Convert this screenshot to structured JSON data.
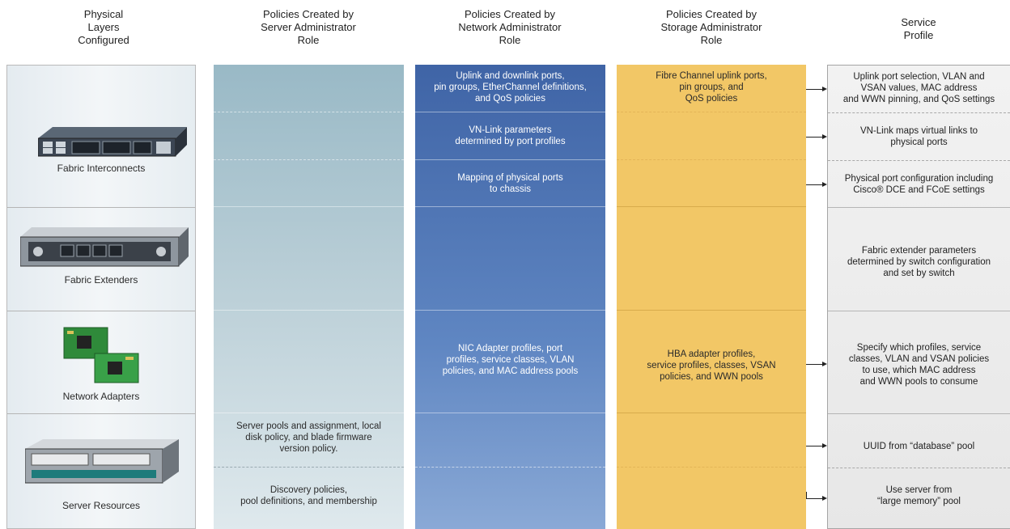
{
  "headers": {
    "physical": "Physical\nLayers\nConfigured",
    "server": "Policies Created by\nServer Administrator\nRole",
    "network": "Policies Created by\nNetwork Administrator\nRole",
    "storage": "Policies Created by\nStorage Administrator\nRole",
    "profile": "Service\nProfile"
  },
  "physical_layers": [
    {
      "label": "Fabric Interconnects",
      "icon": "fabric-interconnect-icon"
    },
    {
      "label": "Fabric Extenders",
      "icon": "fabric-extender-icon"
    },
    {
      "label": "Network Adapters",
      "icon": "network-adapter-icon"
    },
    {
      "label": "Server Resources",
      "icon": "blade-server-icon"
    }
  ],
  "server_policies": [
    "Server pools and assignment, local\ndisk policy, and blade firmware\nversion policy.",
    "Discovery policies,\npool definitions, and membership"
  ],
  "network_policies": [
    "Uplink and downlink ports,\npin groups, EtherChannel definitions,\nand QoS policies",
    "VN-Link parameters\ndetermined by port profiles",
    "Mapping of physical ports\nto chassis",
    "NIC Adapter profiles, port\nprofiles, service classes, VLAN\npolicies, and MAC address pools"
  ],
  "storage_policies": [
    "Fibre Channel uplink ports,\npin groups, and\nQoS policies",
    "HBA adapter profiles,\nservice profiles, classes, VSAN\npolicies, and WWN pools"
  ],
  "service_profile": [
    "Uplink port selection, VLAN and\nVSAN values, MAC address\nand WWN pinning, and QoS settings",
    "VN-Link maps virtual links to\nphysical ports",
    "Physical port configuration including\nCisco® DCE and FCoE settings",
    "Fabric extender parameters\ndetermined by switch configuration\nand set by switch",
    "Specify which profiles, service\nclasses, VLAN and VSAN policies\nto use, which MAC address\nand WWN pools to consume",
    "UUID from “database” pool",
    "Use server from\n“large memory” pool"
  ],
  "colors": {
    "network": "#4a6fae",
    "storage": "#f2c766",
    "server": "#b3cbd4",
    "profile": "#ececec"
  }
}
